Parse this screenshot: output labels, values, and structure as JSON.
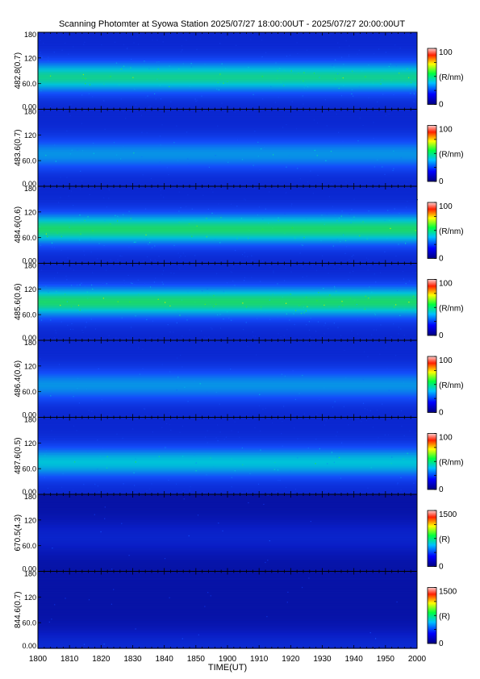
{
  "page": {
    "title": "Scanning Photomter at Syowa Station  2025/07/27 18:00:00UT - 2025/07/27 20:00:00UT"
  },
  "colors": {
    "background_dark": "#0a1460",
    "emission_blue": "#1a3cd0",
    "emission_green": "#30d040",
    "border": "#000000"
  },
  "chart_data": {
    "type": "heatmap",
    "title": "Scanning Photomter at Syowa Station  2025/07/27 18:00:00UT - 2025/07/27 20:00:00UT",
    "xlabel": "TIME(UT)",
    "x_tick_labels": [
      "1800",
      "1810",
      "1820",
      "1830",
      "1840",
      "1850",
      "1900",
      "1910",
      "1920",
      "1930",
      "1940",
      "1950",
      "2000"
    ],
    "x_range": [
      "18:00",
      "20:00"
    ],
    "y_range": [
      0,
      180
    ],
    "y_tick_labels": [
      "0.00",
      "60.0",
      "120",
      "180"
    ],
    "panels": [
      {
        "ylabel": "482.8(0.7)",
        "colorbar_max": "100",
        "colorbar_min": "0",
        "unit": "(R/nm)",
        "band_center_deg": 75,
        "peak_level": 0.55,
        "noise": 0.5
      },
      {
        "ylabel": "483.6(0.7)",
        "colorbar_max": "100",
        "colorbar_min": "0",
        "unit": "(R/nm)",
        "band_center_deg": 75,
        "peak_level": 0.35,
        "noise": 0.25
      },
      {
        "ylabel": "484.6(0.6)",
        "colorbar_max": "100",
        "colorbar_min": "0",
        "unit": "(R/nm)",
        "band_center_deg": 80,
        "peak_level": 0.6,
        "noise": 0.5
      },
      {
        "ylabel": "485.6(0.6)",
        "colorbar_max": "100",
        "colorbar_min": "0",
        "unit": "(R/nm)",
        "band_center_deg": 90,
        "peak_level": 0.6,
        "noise": 0.7
      },
      {
        "ylabel": "486.4(0.6)",
        "colorbar_max": "100",
        "colorbar_min": "0",
        "unit": "(R/nm)",
        "band_center_deg": 75,
        "peak_level": 0.35,
        "noise": 0.2
      },
      {
        "ylabel": "487.6(0.5)",
        "colorbar_max": "100",
        "colorbar_min": "0",
        "unit": "(R/nm)",
        "band_center_deg": 75,
        "peak_level": 0.45,
        "noise": 0.35
      },
      {
        "ylabel": "670.5(4.3)",
        "colorbar_max": "1500",
        "colorbar_min": "0",
        "unit": "(R)",
        "band_center_deg": 80,
        "peak_level": 0.12,
        "noise": 0.05
      },
      {
        "ylabel": "844.6(0.7)",
        "colorbar_max": "1500",
        "colorbar_min": "0",
        "unit": "(R)",
        "band_center_deg": 5,
        "peak_level": 0.15,
        "noise": 0.06
      }
    ]
  }
}
